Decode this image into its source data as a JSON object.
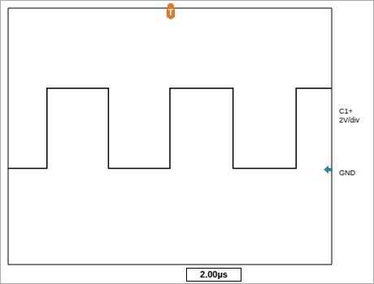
{
  "chart_data": {
    "type": "line",
    "x": [
      -10,
      -7.6,
      -7.6,
      -3.8,
      -3.8,
      0,
      0,
      3.9,
      3.9,
      7.8,
      7.8,
      10
    ],
    "values": [
      0,
      0,
      5,
      5,
      0,
      0,
      5,
      5,
      0,
      0,
      5,
      5
    ],
    "color": "#000000",
    "xlim": [
      -10,
      10
    ],
    "xticks": [
      -10,
      -8,
      -6,
      -4,
      -2,
      0,
      2,
      4,
      6,
      8,
      10
    ],
    "ylim": [
      -6,
      10
    ],
    "yticks": [
      -6,
      -4,
      -2,
      0,
      2,
      4,
      6,
      8,
      10
    ],
    "grid": true,
    "tick_labels": false,
    "annotations": [
      "T",
      "C1+",
      "2V/div",
      "GND",
      "2.00µs"
    ]
  }
}
